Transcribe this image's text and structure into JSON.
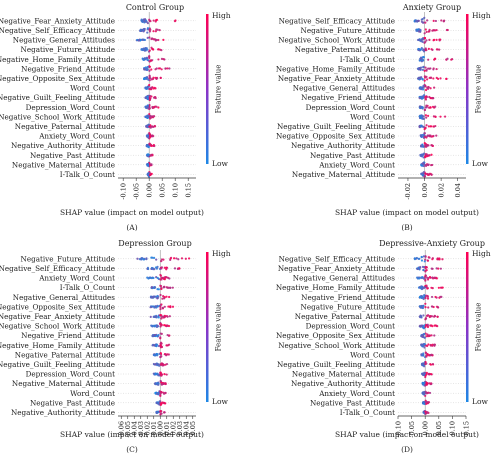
{
  "colorbar": {
    "high": "High",
    "low": "Low",
    "label": "Feature value",
    "color_high": "#ff0052",
    "color_low": "#1e88e5"
  },
  "chart_data": [
    {
      "type": "scatter",
      "subtype": "shap-beeswarm",
      "title": "Control Group",
      "caption": "(A)",
      "xlabel": "SHAP value (impact on model output)",
      "xlim": [
        -0.12,
        0.18
      ],
      "xticks": [
        -0.1,
        -0.05,
        0.0,
        0.05,
        0.1,
        0.15
      ],
      "xtick_labels": [
        "-0.10",
        "-0.05",
        "0.00",
        "0.05",
        "0.10",
        "0.15"
      ],
      "features": [
        {
          "name": "Negative_Fear_Anxiety_Attitude",
          "min": -0.03,
          "max": 0.13
        },
        {
          "name": "Negative_Self_Efficacy_Attitude",
          "min": -0.035,
          "max": 0.09
        },
        {
          "name": "Negative_General_Attitudes",
          "min": -0.05,
          "max": 0.06
        },
        {
          "name": "Negative_Future_Attitude",
          "min": -0.03,
          "max": 0.07
        },
        {
          "name": "Negative_Home_Family_Attitude",
          "min": -0.025,
          "max": 0.06
        },
        {
          "name": "Negative_Friend_Attitude",
          "min": -0.02,
          "max": 0.08
        },
        {
          "name": "Negative_Opposite_Sex_Attitude",
          "min": -0.02,
          "max": 0.05
        },
        {
          "name": "Word_Count",
          "min": -0.015,
          "max": 0.03
        },
        {
          "name": "Negative_Guilt_Feeling_Attitude",
          "min": -0.015,
          "max": 0.035
        },
        {
          "name": "Depression_Word_Count",
          "min": -0.015,
          "max": 0.04
        },
        {
          "name": "Negative_School_Work_Attitude",
          "min": -0.015,
          "max": 0.025
        },
        {
          "name": "Negative_Paternal_Attitude",
          "min": -0.012,
          "max": 0.025
        },
        {
          "name": "Anxiety_Word_Count",
          "min": -0.01,
          "max": 0.02
        },
        {
          "name": "Negative_Authority_Attitude",
          "min": -0.01,
          "max": 0.02
        },
        {
          "name": "Negative_Past_Attitude",
          "min": -0.008,
          "max": 0.015
        },
        {
          "name": "Negative_Maternal_Attitude",
          "min": -0.008,
          "max": 0.012
        },
        {
          "name": "I-Talk_O_Count",
          "min": -0.006,
          "max": 0.01
        }
      ]
    },
    {
      "type": "scatter",
      "subtype": "shap-beeswarm",
      "title": "Anxiety Group",
      "caption": "(B)",
      "xlabel": "SHAP value (impact on model output)",
      "xlim": [
        -0.032,
        0.05
      ],
      "xticks": [
        -0.02,
        0.0,
        0.02,
        0.04
      ],
      "xtick_labels": [
        "-0.02",
        "0.00",
        "0.02",
        "0.04"
      ],
      "features": [
        {
          "name": "Negative_Self_Efficacy_Attitude",
          "min": -0.012,
          "max": 0.025
        },
        {
          "name": "Negative_Future_Attitude",
          "min": -0.01,
          "max": 0.028
        },
        {
          "name": "Negative_School_Work_Attitude",
          "min": -0.008,
          "max": 0.02
        },
        {
          "name": "Negative_Paternal_Attitude",
          "min": -0.008,
          "max": 0.018
        },
        {
          "name": "I-Talk_O_Count",
          "min": -0.006,
          "max": 0.035
        },
        {
          "name": "Negative_Home_Family_Attitude",
          "min": -0.008,
          "max": 0.02
        },
        {
          "name": "Negative_Fear_Anxiety_Attitude",
          "min": -0.008,
          "max": 0.028
        },
        {
          "name": "Negative_General_Attitudes",
          "min": -0.006,
          "max": 0.018
        },
        {
          "name": "Negative_Friend_Attitude",
          "min": -0.006,
          "max": 0.015
        },
        {
          "name": "Depression_Word_Count",
          "min": -0.006,
          "max": 0.02
        },
        {
          "name": "Word_Count",
          "min": -0.006,
          "max": 0.025
        },
        {
          "name": "Negative_Guilt_Feeling_Attitude",
          "min": -0.006,
          "max": 0.015
        },
        {
          "name": "Negative_Opposite_Sex_Attitude",
          "min": -0.005,
          "max": 0.015
        },
        {
          "name": "Negative_Authority_Attitude",
          "min": -0.005,
          "max": 0.012
        },
        {
          "name": "Negative_Past_Attitude",
          "min": -0.005,
          "max": 0.012
        },
        {
          "name": "Anxiety_Word_Count",
          "min": -0.004,
          "max": 0.01
        },
        {
          "name": "Negative_Maternal_Attitude",
          "min": -0.004,
          "max": 0.01
        }
      ]
    },
    {
      "type": "scatter",
      "subtype": "shap-beeswarm",
      "title": "Depression Group",
      "caption": "(C)",
      "xlabel": "SHAP value (impact on model output)",
      "xlim": [
        -0.065,
        0.055
      ],
      "xticks": [
        -0.06,
        -0.05,
        -0.04,
        -0.03,
        -0.02,
        -0.01,
        0.0,
        0.01,
        0.02,
        0.03,
        0.04,
        0.05
      ],
      "xtick_labels": [
        "-0.06",
        "-0.05",
        "-0.04",
        "-0.03",
        "-0.02",
        "-0.01",
        "0.00",
        "0.01",
        "0.02",
        "0.03",
        "0.04",
        "0.05"
      ],
      "features": [
        {
          "name": "Negative_Future_Attitude",
          "min": -0.04,
          "max": 0.05
        },
        {
          "name": "Negative_Self_Efficacy_Attitude",
          "min": -0.02,
          "max": 0.03
        },
        {
          "name": "Anxiety_Word_Count",
          "min": -0.02,
          "max": 0.02
        },
        {
          "name": "I-Talk_O_Count",
          "min": -0.015,
          "max": 0.02
        },
        {
          "name": "Negative_General_Attitudes",
          "min": -0.015,
          "max": 0.02
        },
        {
          "name": "Negative_Opposite_Sex_Attitude",
          "min": -0.015,
          "max": 0.02
        },
        {
          "name": "Negative_Fear_Anxiety_Attitude",
          "min": -0.015,
          "max": 0.015
        },
        {
          "name": "Negative_School_Work_Attitude",
          "min": -0.015,
          "max": 0.015
        },
        {
          "name": "Negative_Friend_Attitude",
          "min": -0.012,
          "max": 0.015
        },
        {
          "name": "Negative_Home_Family_Attitude",
          "min": -0.012,
          "max": 0.015
        },
        {
          "name": "Negative_Paternal_Attitude",
          "min": -0.01,
          "max": 0.015
        },
        {
          "name": "Negative_Guilt_Feeling_Attitude",
          "min": -0.01,
          "max": 0.012
        },
        {
          "name": "Depression_Word_Count",
          "min": -0.01,
          "max": 0.012
        },
        {
          "name": "Negative_Maternal_Attitude",
          "min": -0.008,
          "max": 0.01
        },
        {
          "name": "Word_Count",
          "min": -0.008,
          "max": 0.01
        },
        {
          "name": "Negative_Past_Attitude",
          "min": -0.006,
          "max": 0.008
        },
        {
          "name": "Negative_Authority_Attitude",
          "min": -0.006,
          "max": 0.008
        }
      ]
    },
    {
      "type": "scatter",
      "subtype": "shap-beeswarm",
      "title": "Depressive-Anxiety Group",
      "caption": "(D)",
      "xlabel": "SHAP value (impact on model output)",
      "xlim": [
        -0.1,
        0.15
      ],
      "xticks": [
        -0.1,
        -0.05,
        0.0,
        0.05,
        0.1,
        0.15
      ],
      "xtick_labels": [
        "-0.10",
        "-0.05",
        "0.00",
        "0.05",
        "0.10",
        "0.15"
      ],
      "features": [
        {
          "name": "Negative_Self_Efficacy_Attitude",
          "min": -0.04,
          "max": 0.1
        },
        {
          "name": "Negative_Fear_Anxiety_Attitude",
          "min": -0.03,
          "max": 0.08
        },
        {
          "name": "Negative_General_Attitudes",
          "min": -0.03,
          "max": 0.06
        },
        {
          "name": "Negative_Home_Family_Attitude",
          "min": -0.025,
          "max": 0.07
        },
        {
          "name": "Negative_Friend_Attitude",
          "min": -0.02,
          "max": 0.06
        },
        {
          "name": "Negative_Future_Attitude",
          "min": -0.02,
          "max": 0.05
        },
        {
          "name": "Negative_Paternal_Attitude",
          "min": -0.02,
          "max": 0.05
        },
        {
          "name": "Depression_Word_Count",
          "min": -0.02,
          "max": 0.05
        },
        {
          "name": "Negative_Opposite_Sex_Attitude",
          "min": -0.015,
          "max": 0.04
        },
        {
          "name": "Negative_School_Work_Attitude",
          "min": -0.015,
          "max": 0.04
        },
        {
          "name": "Word_Count",
          "min": -0.015,
          "max": 0.035
        },
        {
          "name": "Negative_Guilt_Feeling_Attitude",
          "min": -0.012,
          "max": 0.03
        },
        {
          "name": "Negative_Maternal_Attitude",
          "min": -0.012,
          "max": 0.025
        },
        {
          "name": "Negative_Authority_Attitude",
          "min": -0.01,
          "max": 0.025
        },
        {
          "name": "Anxiety_Word_Count",
          "min": -0.01,
          "max": 0.02
        },
        {
          "name": "Negative_Past_Attitude",
          "min": -0.008,
          "max": 0.015
        },
        {
          "name": "I-Talk_O_Count",
          "min": -0.006,
          "max": 0.012
        }
      ]
    }
  ]
}
